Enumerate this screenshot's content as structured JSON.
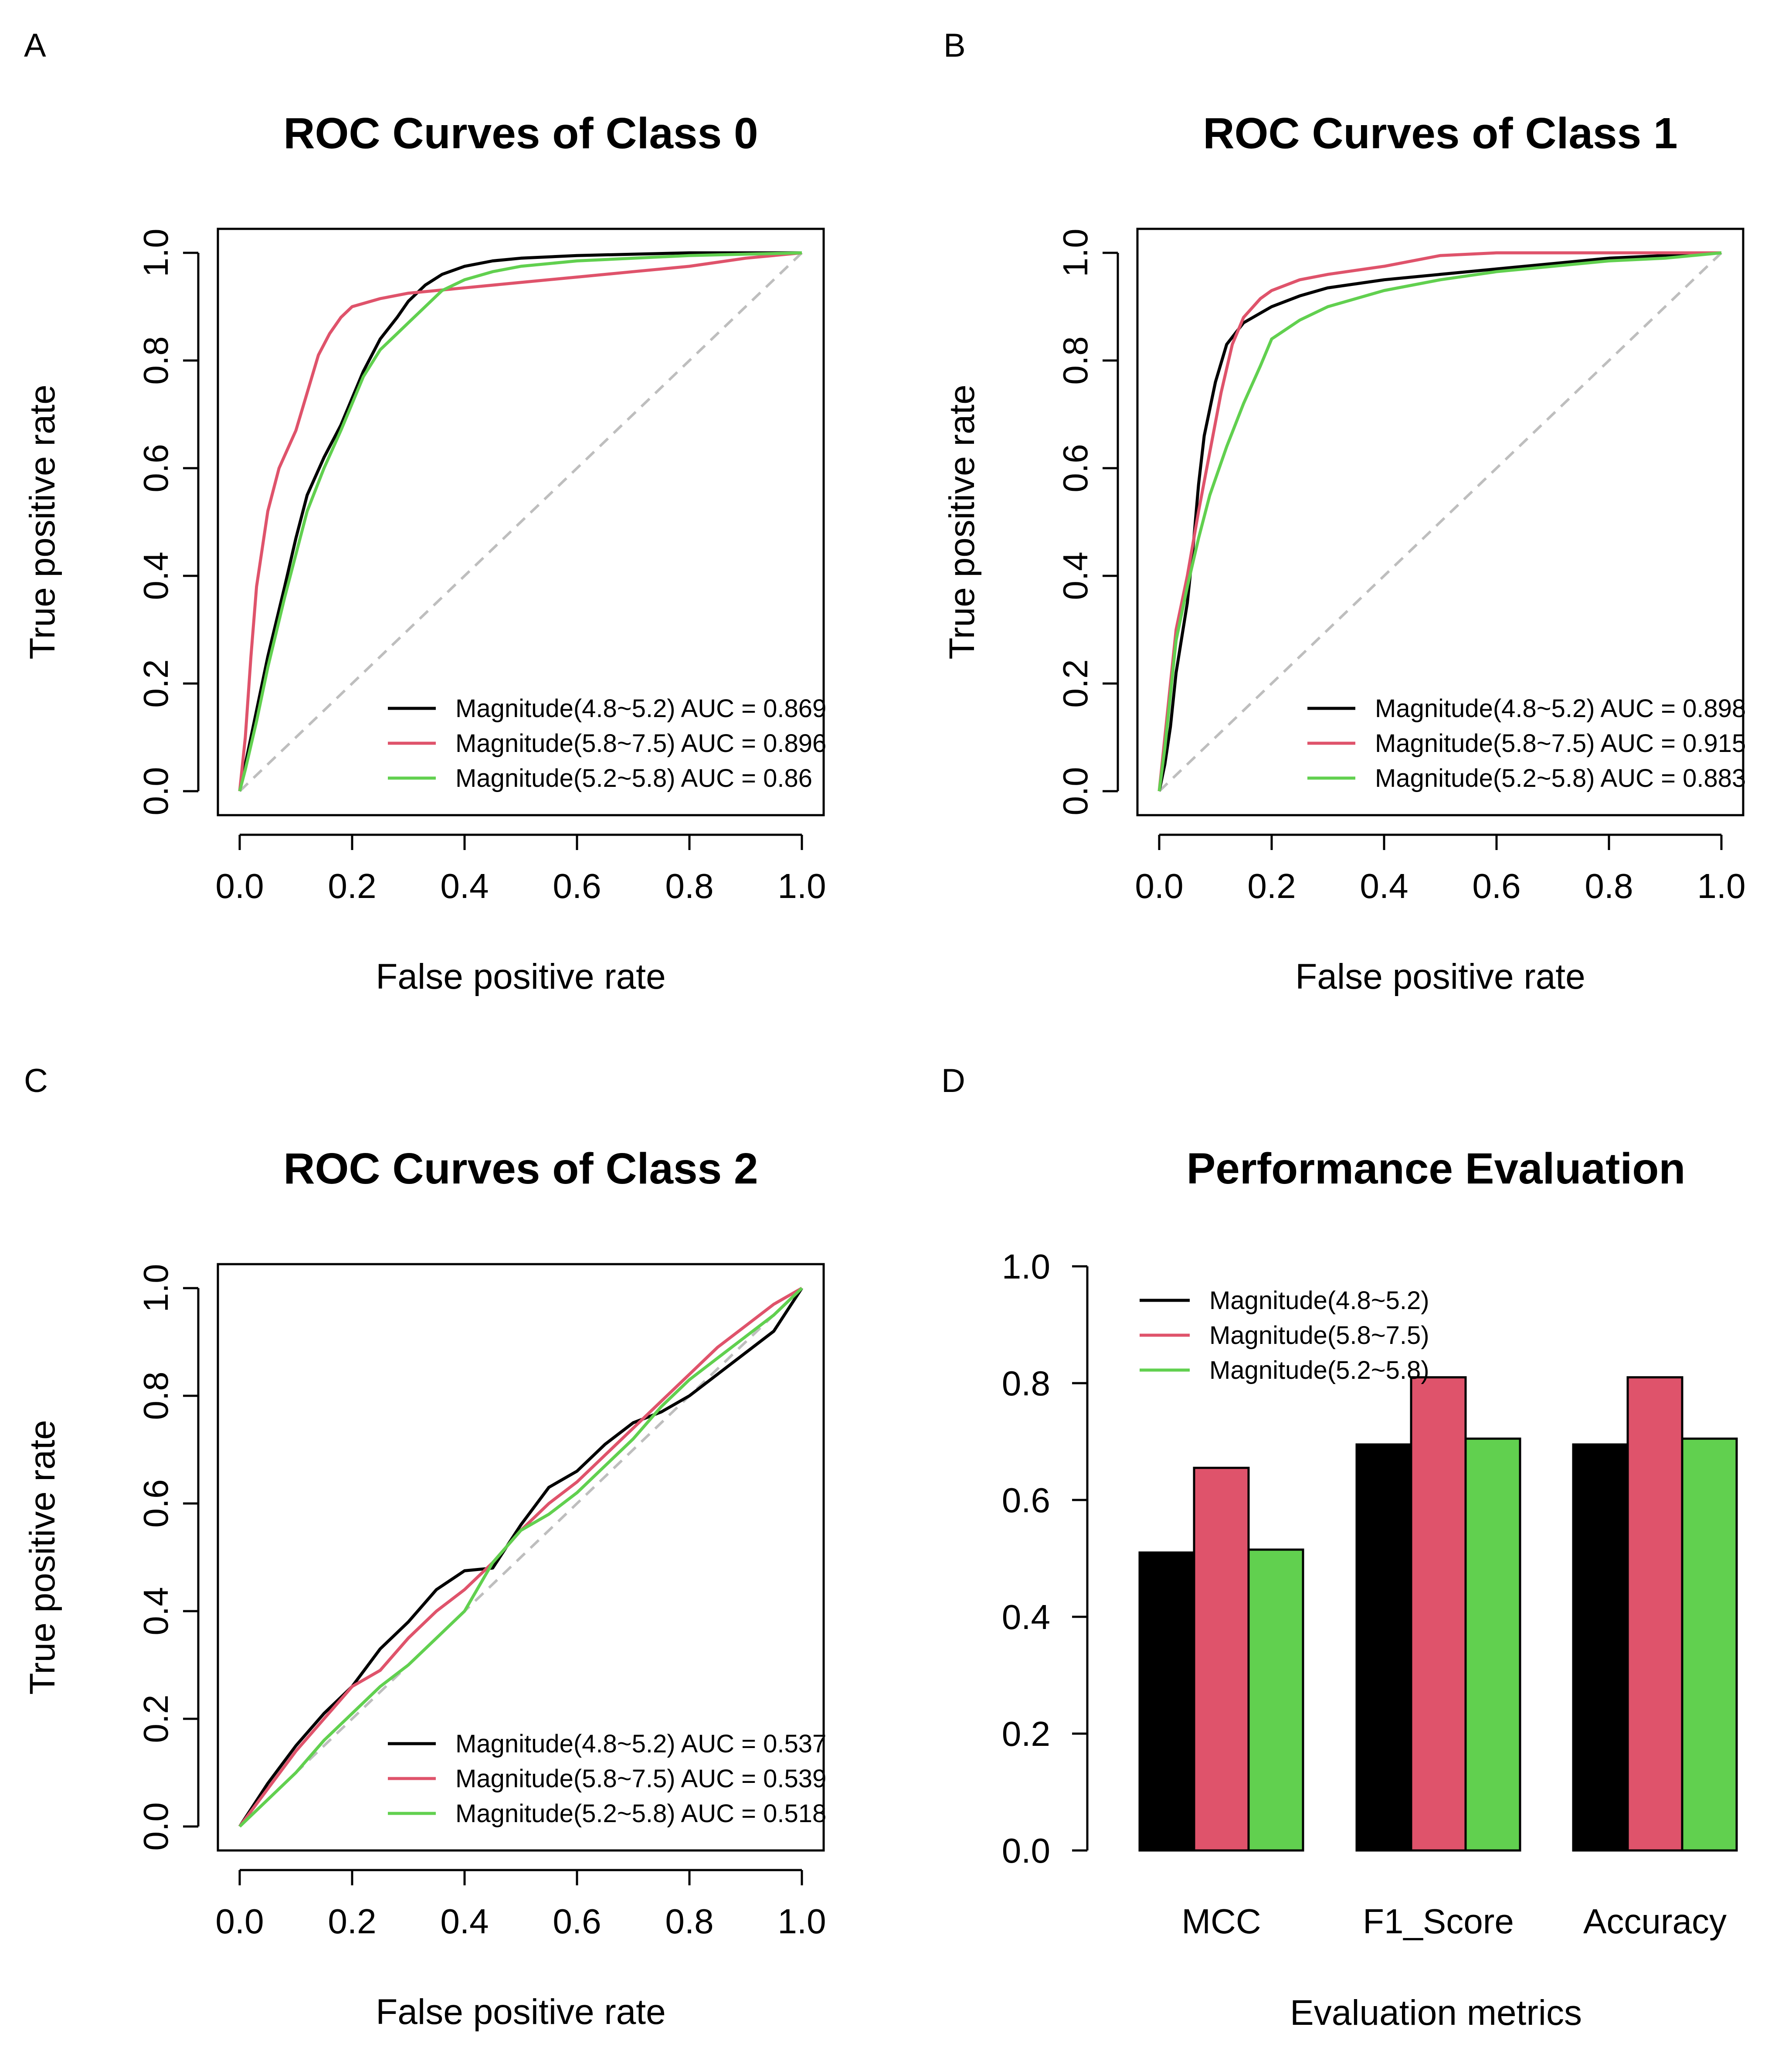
{
  "colors": {
    "black": "#000000",
    "red": "#DF536B",
    "green": "#61D04F",
    "diag": "#BEBEBE"
  },
  "chart_data": [
    {
      "panel": "A",
      "type": "line",
      "title": "ROC Curves of Class 0",
      "xlabel": "False positive rate",
      "ylabel": "True positive rate",
      "xlim": [
        0,
        1
      ],
      "ylim": [
        0,
        1
      ],
      "ticks": [
        "0.0",
        "0.2",
        "0.4",
        "0.6",
        "0.8",
        "1.0"
      ],
      "tick_values": [
        0,
        0.2,
        0.4,
        0.6,
        0.8,
        1.0
      ],
      "legend_position": "bottom-right",
      "series": [
        {
          "name": "Magnitude(4.8~5.2) AUC = 0.869",
          "color": "black",
          "points": [
            [
              0,
              0
            ],
            [
              0.01,
              0.05
            ],
            [
              0.03,
              0.15
            ],
            [
              0.05,
              0.25
            ],
            [
              0.08,
              0.38
            ],
            [
              0.1,
              0.47
            ],
            [
              0.12,
              0.55
            ],
            [
              0.15,
              0.62
            ],
            [
              0.18,
              0.68
            ],
            [
              0.2,
              0.73
            ],
            [
              0.22,
              0.78
            ],
            [
              0.25,
              0.84
            ],
            [
              0.28,
              0.88
            ],
            [
              0.3,
              0.91
            ],
            [
              0.33,
              0.94
            ],
            [
              0.36,
              0.96
            ],
            [
              0.4,
              0.975
            ],
            [
              0.45,
              0.985
            ],
            [
              0.5,
              0.99
            ],
            [
              0.6,
              0.995
            ],
            [
              0.8,
              1.0
            ],
            [
              1.0,
              1.0
            ]
          ]
        },
        {
          "name": "Magnitude(5.8~7.5) AUC = 0.896",
          "color": "red",
          "points": [
            [
              0,
              0
            ],
            [
              0.01,
              0.1
            ],
            [
              0.02,
              0.25
            ],
            [
              0.03,
              0.38
            ],
            [
              0.05,
              0.52
            ],
            [
              0.07,
              0.6
            ],
            [
              0.1,
              0.67
            ],
            [
              0.12,
              0.74
            ],
            [
              0.14,
              0.81
            ],
            [
              0.16,
              0.85
            ],
            [
              0.18,
              0.88
            ],
            [
              0.2,
              0.9
            ],
            [
              0.25,
              0.915
            ],
            [
              0.3,
              0.925
            ],
            [
              0.4,
              0.935
            ],
            [
              0.5,
              0.945
            ],
            [
              0.6,
              0.955
            ],
            [
              0.7,
              0.965
            ],
            [
              0.8,
              0.975
            ],
            [
              0.9,
              0.99
            ],
            [
              1.0,
              1.0
            ]
          ]
        },
        {
          "name": "Magnitude(5.2~5.8) AUC = 0.86",
          "color": "green",
          "points": [
            [
              0,
              0
            ],
            [
              0.01,
              0.04
            ],
            [
              0.03,
              0.13
            ],
            [
              0.05,
              0.23
            ],
            [
              0.08,
              0.36
            ],
            [
              0.1,
              0.44
            ],
            [
              0.12,
              0.52
            ],
            [
              0.15,
              0.6
            ],
            [
              0.18,
              0.67
            ],
            [
              0.2,
              0.72
            ],
            [
              0.22,
              0.77
            ],
            [
              0.25,
              0.82
            ],
            [
              0.28,
              0.85
            ],
            [
              0.3,
              0.87
            ],
            [
              0.33,
              0.9
            ],
            [
              0.36,
              0.93
            ],
            [
              0.4,
              0.95
            ],
            [
              0.45,
              0.965
            ],
            [
              0.5,
              0.975
            ],
            [
              0.6,
              0.985
            ],
            [
              0.8,
              0.995
            ],
            [
              1.0,
              1.0
            ]
          ]
        }
      ]
    },
    {
      "panel": "B",
      "type": "line",
      "title": "ROC Curves of Class 1",
      "xlabel": "False positive rate",
      "ylabel": "True positive rate",
      "xlim": [
        0,
        1
      ],
      "ylim": [
        0,
        1
      ],
      "ticks": [
        "0.0",
        "0.2",
        "0.4",
        "0.6",
        "0.8",
        "1.0"
      ],
      "tick_values": [
        0,
        0.2,
        0.4,
        0.6,
        0.8,
        1.0
      ],
      "legend_position": "bottom-right",
      "series": [
        {
          "name": "Magnitude(4.8~5.2) AUC = 0.898",
          "color": "black",
          "points": [
            [
              0,
              0
            ],
            [
              0.01,
              0.05
            ],
            [
              0.02,
              0.12
            ],
            [
              0.03,
              0.22
            ],
            [
              0.05,
              0.35
            ],
            [
              0.06,
              0.45
            ],
            [
              0.07,
              0.57
            ],
            [
              0.08,
              0.66
            ],
            [
              0.1,
              0.76
            ],
            [
              0.12,
              0.83
            ],
            [
              0.15,
              0.87
            ],
            [
              0.2,
              0.9
            ],
            [
              0.25,
              0.92
            ],
            [
              0.3,
              0.935
            ],
            [
              0.4,
              0.95
            ],
            [
              0.5,
              0.96
            ],
            [
              0.6,
              0.97
            ],
            [
              0.7,
              0.98
            ],
            [
              0.8,
              0.99
            ],
            [
              0.9,
              0.995
            ],
            [
              1.0,
              1.0
            ]
          ]
        },
        {
          "name": "Magnitude(5.8~7.5) AUC = 0.915",
          "color": "red",
          "points": [
            [
              0,
              0
            ],
            [
              0.01,
              0.1
            ],
            [
              0.02,
              0.2
            ],
            [
              0.03,
              0.3
            ],
            [
              0.05,
              0.4
            ],
            [
              0.07,
              0.52
            ],
            [
              0.09,
              0.63
            ],
            [
              0.11,
              0.74
            ],
            [
              0.13,
              0.83
            ],
            [
              0.15,
              0.88
            ],
            [
              0.18,
              0.915
            ],
            [
              0.2,
              0.93
            ],
            [
              0.25,
              0.95
            ],
            [
              0.3,
              0.96
            ],
            [
              0.4,
              0.975
            ],
            [
              0.5,
              0.995
            ],
            [
              0.6,
              1.0
            ],
            [
              1.0,
              1.0
            ]
          ]
        },
        {
          "name": "Magnitude(5.2~5.8) AUC = 0.883",
          "color": "green",
          "points": [
            [
              0,
              0
            ],
            [
              0.01,
              0.08
            ],
            [
              0.02,
              0.18
            ],
            [
              0.03,
              0.28
            ],
            [
              0.05,
              0.38
            ],
            [
              0.07,
              0.47
            ],
            [
              0.09,
              0.55
            ],
            [
              0.12,
              0.64
            ],
            [
              0.15,
              0.72
            ],
            [
              0.18,
              0.79
            ],
            [
              0.2,
              0.84
            ],
            [
              0.25,
              0.875
            ],
            [
              0.3,
              0.9
            ],
            [
              0.4,
              0.93
            ],
            [
              0.5,
              0.95
            ],
            [
              0.6,
              0.965
            ],
            [
              0.7,
              0.975
            ],
            [
              0.8,
              0.985
            ],
            [
              0.9,
              0.99
            ],
            [
              1.0,
              1.0
            ]
          ]
        }
      ]
    },
    {
      "panel": "C",
      "type": "line",
      "title": "ROC Curves of Class 2",
      "xlabel": "False positive rate",
      "ylabel": "True positive rate",
      "xlim": [
        0,
        1
      ],
      "ylim": [
        0,
        1
      ],
      "ticks": [
        "0.0",
        "0.2",
        "0.4",
        "0.6",
        "0.8",
        "1.0"
      ],
      "tick_values": [
        0,
        0.2,
        0.4,
        0.6,
        0.8,
        1.0
      ],
      "legend_position": "bottom-right",
      "series": [
        {
          "name": "Magnitude(4.8~5.2) AUC = 0.537",
          "color": "black",
          "points": [
            [
              0,
              0
            ],
            [
              0.05,
              0.08
            ],
            [
              0.1,
              0.15
            ],
            [
              0.15,
              0.21
            ],
            [
              0.2,
              0.26
            ],
            [
              0.25,
              0.33
            ],
            [
              0.3,
              0.38
            ],
            [
              0.35,
              0.44
            ],
            [
              0.4,
              0.475
            ],
            [
              0.45,
              0.48
            ],
            [
              0.5,
              0.56
            ],
            [
              0.55,
              0.63
            ],
            [
              0.6,
              0.66
            ],
            [
              0.65,
              0.71
            ],
            [
              0.7,
              0.75
            ],
            [
              0.75,
              0.77
            ],
            [
              0.8,
              0.8
            ],
            [
              0.85,
              0.84
            ],
            [
              0.9,
              0.88
            ],
            [
              0.95,
              0.92
            ],
            [
              1.0,
              1.0
            ]
          ]
        },
        {
          "name": "Magnitude(5.8~7.5) AUC = 0.539",
          "color": "red",
          "points": [
            [
              0,
              0
            ],
            [
              0.05,
              0.07
            ],
            [
              0.1,
              0.14
            ],
            [
              0.15,
              0.2
            ],
            [
              0.2,
              0.26
            ],
            [
              0.25,
              0.29
            ],
            [
              0.3,
              0.35
            ],
            [
              0.35,
              0.4
            ],
            [
              0.4,
              0.44
            ],
            [
              0.45,
              0.49
            ],
            [
              0.5,
              0.55
            ],
            [
              0.55,
              0.6
            ],
            [
              0.6,
              0.64
            ],
            [
              0.65,
              0.69
            ],
            [
              0.7,
              0.74
            ],
            [
              0.75,
              0.79
            ],
            [
              0.8,
              0.84
            ],
            [
              0.85,
              0.89
            ],
            [
              0.9,
              0.93
            ],
            [
              0.95,
              0.97
            ],
            [
              1.0,
              1.0
            ]
          ]
        },
        {
          "name": "Magnitude(5.2~5.8) AUC = 0.518",
          "color": "green",
          "points": [
            [
              0,
              0
            ],
            [
              0.05,
              0.05
            ],
            [
              0.1,
              0.1
            ],
            [
              0.15,
              0.16
            ],
            [
              0.2,
              0.21
            ],
            [
              0.25,
              0.26
            ],
            [
              0.3,
              0.3
            ],
            [
              0.35,
              0.35
            ],
            [
              0.4,
              0.4
            ],
            [
              0.45,
              0.49
            ],
            [
              0.5,
              0.55
            ],
            [
              0.55,
              0.58
            ],
            [
              0.6,
              0.62
            ],
            [
              0.65,
              0.67
            ],
            [
              0.7,
              0.72
            ],
            [
              0.75,
              0.78
            ],
            [
              0.8,
              0.83
            ],
            [
              0.85,
              0.87
            ],
            [
              0.9,
              0.91
            ],
            [
              0.95,
              0.95
            ],
            [
              1.0,
              1.0
            ]
          ]
        }
      ]
    },
    {
      "panel": "D",
      "type": "bar",
      "title": "Performance Evaluation",
      "xlabel": "Evaluation metrics",
      "ylabel": "",
      "ylim": [
        0,
        1
      ],
      "yticks": [
        "0.0",
        "0.2",
        "0.4",
        "0.6",
        "0.8",
        "1.0"
      ],
      "ytick_values": [
        0,
        0.2,
        0.4,
        0.6,
        0.8,
        1.0
      ],
      "categories": [
        "MCC",
        "F1_Score",
        "Accuracy"
      ],
      "legend_position": "top-left",
      "series": [
        {
          "name": "Magnitude(4.8~5.2)",
          "color": "black",
          "values": [
            0.51,
            0.695,
            0.695
          ]
        },
        {
          "name": "Magnitude(5.8~7.5)",
          "color": "red",
          "values": [
            0.655,
            0.81,
            0.81
          ]
        },
        {
          "name": "Magnitude(5.2~5.8)",
          "color": "green",
          "values": [
            0.515,
            0.705,
            0.705
          ]
        }
      ]
    }
  ]
}
